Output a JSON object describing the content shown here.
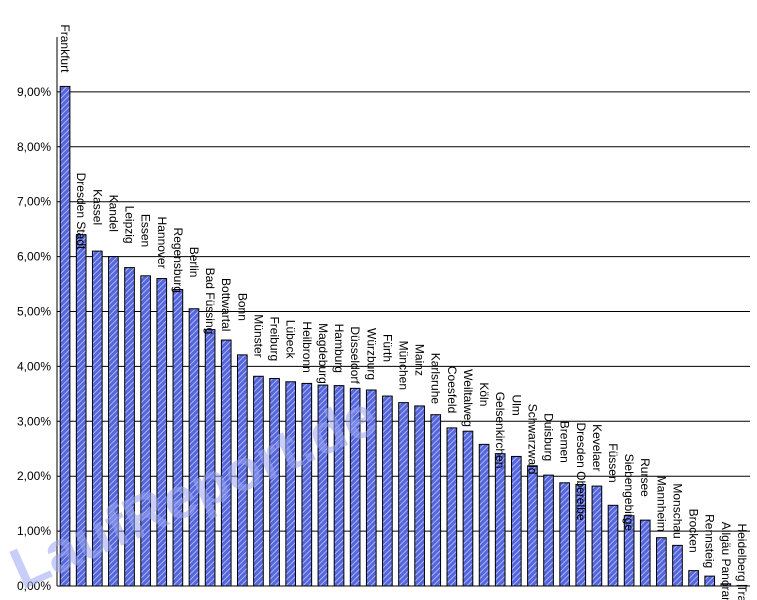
{
  "chart_data": {
    "type": "bar",
    "title": "",
    "xlabel": "",
    "ylabel": "",
    "ylim": [
      0,
      0.1
    ],
    "grid": true,
    "legend": "none",
    "bar_color": "#5566dd",
    "bar_highlight": "#aab4f4",
    "y_ticks": [
      "0,00%",
      "1,00%",
      "2,00%",
      "3,00%",
      "4,00%",
      "5,00%",
      "6,00%",
      "7,00%",
      "8,00%",
      "9,00%"
    ],
    "y_tick_values": [
      0,
      0.01,
      0.02,
      0.03,
      0.04,
      0.05,
      0.06,
      0.07,
      0.08,
      0.09
    ],
    "categories": [
      "Frankfurt",
      "Dresden Stadt",
      "Kassel",
      "Kandel",
      "Leipzig",
      "Essen",
      "Hannover",
      "Regensburg",
      "Berlin",
      "Bad Füssing",
      "Bottwartal",
      "Bonn",
      "Münster",
      "Freiburg",
      "Lübeck",
      "Heilbronn",
      "Magdeburg",
      "Hamburg",
      "Düsseldorf",
      "Würzburg",
      "Fürth",
      "München",
      "Mainz",
      "Karlsruhe",
      "Coesfeld",
      "Weiltalweg",
      "Köln",
      "Gelsenkirchen",
      "Ulm",
      "Schwarzwald",
      "Duisburg",
      "Bremen",
      "Dresden Oberelbe",
      "Kevelaer",
      "Füssen",
      "Siebengebirge",
      "Rursee",
      "Mannheim",
      "Monschau",
      "Brocken",
      "Rennsteig",
      "Allgäu Panorama",
      "Heidelberg Trail"
    ],
    "values": [
      0.091,
      0.064,
      0.061,
      0.06,
      0.058,
      0.0565,
      0.056,
      0.054,
      0.0505,
      0.0467,
      0.0448,
      0.0421,
      0.0382,
      0.0378,
      0.0372,
      0.0369,
      0.0366,
      0.0365,
      0.036,
      0.0357,
      0.0346,
      0.0334,
      0.0328,
      0.0312,
      0.0288,
      0.0282,
      0.0258,
      0.0241,
      0.0236,
      0.0219,
      0.0202,
      0.0188,
      0.0185,
      0.0182,
      0.0147,
      0.0128,
      0.012,
      0.0088,
      0.0074,
      0.0028,
      0.0018,
      0.0004,
      0.0001
    ]
  },
  "watermark": "LaufReport.de"
}
